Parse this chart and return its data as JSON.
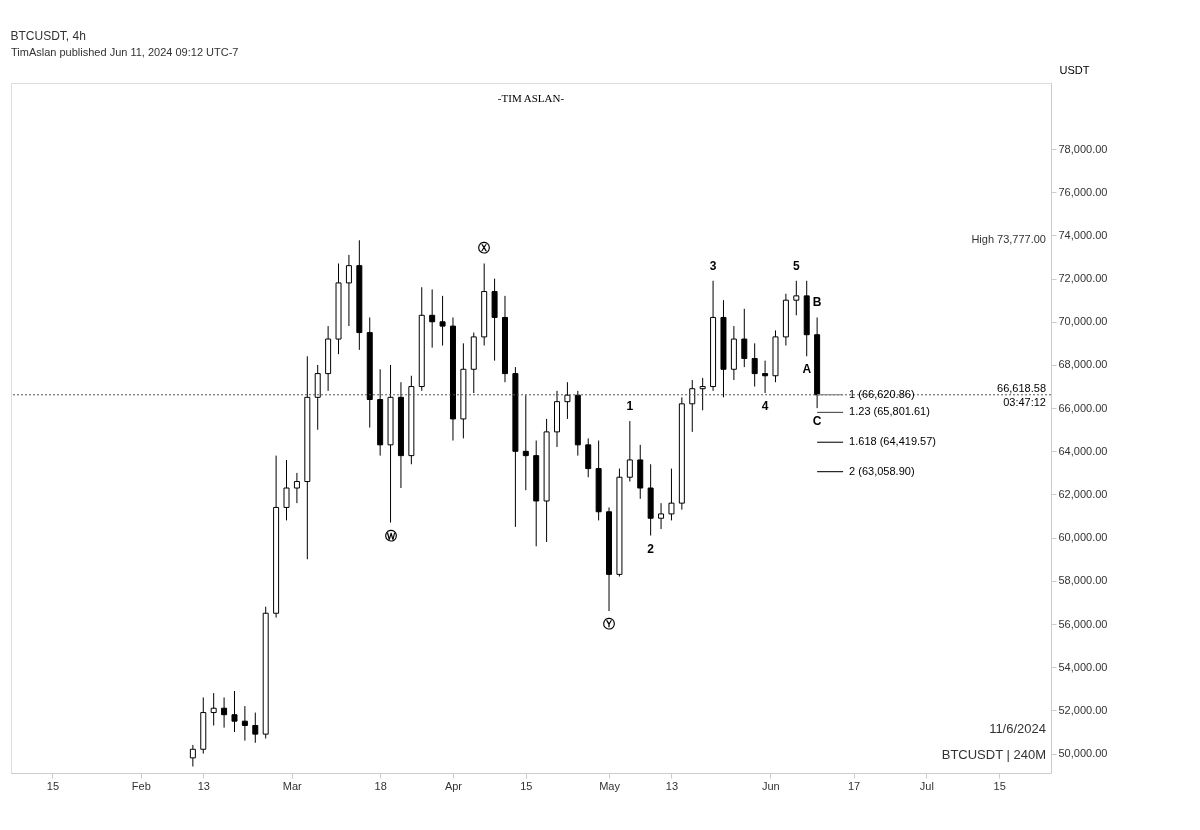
{
  "chart_data": {
    "type": "candlestick",
    "title": "BTCUSDT, 4h",
    "subtitle": "-TIM ASLAN-",
    "ylabel": "USDT",
    "color": "#000000",
    "x": [
      "2024-02-11",
      "2024-02-13",
      "2024-02-15",
      "2024-02-17",
      "2024-02-19",
      "2024-02-21",
      "2024-02-23",
      "2024-02-25",
      "2024-02-27",
      "2024-02-29",
      "2024-03-02",
      "2024-03-04",
      "2024-03-06",
      "2024-03-08",
      "2024-03-10",
      "2024-03-12",
      "2024-03-14",
      "2024-03-16",
      "2024-03-18",
      "2024-03-20",
      "2024-03-22",
      "2024-03-24",
      "2024-03-26",
      "2024-03-28",
      "2024-03-30",
      "2024-04-01",
      "2024-04-03",
      "2024-04-05",
      "2024-04-07",
      "2024-04-09",
      "2024-04-11",
      "2024-04-13",
      "2024-04-15",
      "2024-04-17",
      "2024-04-19",
      "2024-04-21",
      "2024-04-23",
      "2024-04-25",
      "2024-04-27",
      "2024-04-29",
      "2024-05-01",
      "2024-05-03",
      "2024-05-05",
      "2024-05-07",
      "2024-05-09",
      "2024-05-11",
      "2024-05-13",
      "2024-05-15",
      "2024-05-17",
      "2024-05-19",
      "2024-05-21",
      "2024-05-23",
      "2024-05-25",
      "2024-05-27",
      "2024-05-29",
      "2024-05-31",
      "2024-06-02",
      "2024-06-04",
      "2024-06-06",
      "2024-06-08",
      "2024-06-10"
    ],
    "ohlc": [
      [
        49800,
        50400,
        49400,
        50200
      ],
      [
        50200,
        52600,
        50000,
        51900
      ],
      [
        51900,
        52800,
        51300,
        52100
      ],
      [
        52100,
        52600,
        51200,
        51800
      ],
      [
        51800,
        52900,
        51000,
        51500
      ],
      [
        51500,
        52200,
        50600,
        51300
      ],
      [
        51300,
        51900,
        50500,
        50900
      ],
      [
        50900,
        56800,
        50700,
        56500
      ],
      [
        56500,
        63800,
        56300,
        61400
      ],
      [
        61400,
        63600,
        60800,
        62300
      ],
      [
        62300,
        63000,
        61600,
        62600
      ],
      [
        62600,
        68400,
        59000,
        66500
      ],
      [
        66500,
        68000,
        65000,
        67600
      ],
      [
        67600,
        69800,
        66800,
        69200
      ],
      [
        69200,
        72700,
        68500,
        71800
      ],
      [
        71800,
        73100,
        69800,
        72600
      ],
      [
        72600,
        73777,
        68700,
        69500
      ],
      [
        69500,
        70200,
        65100,
        66400
      ],
      [
        66400,
        67800,
        63800,
        64300
      ],
      [
        64300,
        68000,
        60700,
        66500
      ],
      [
        66500,
        67200,
        62300,
        63800
      ],
      [
        63800,
        67500,
        63400,
        67000
      ],
      [
        67000,
        71600,
        66800,
        70300
      ],
      [
        70300,
        71500,
        68800,
        70000
      ],
      [
        70000,
        71200,
        68900,
        69800
      ],
      [
        69800,
        70200,
        64500,
        65500
      ],
      [
        65500,
        69000,
        64600,
        67800
      ],
      [
        67800,
        69500,
        66700,
        69300
      ],
      [
        69300,
        72700,
        68900,
        71400
      ],
      [
        71400,
        72000,
        68200,
        70200
      ],
      [
        70200,
        71200,
        67200,
        67600
      ],
      [
        67600,
        67900,
        60500,
        64000
      ],
      [
        64000,
        66600,
        62200,
        63800
      ],
      [
        63800,
        64500,
        59600,
        61700
      ],
      [
        61700,
        65500,
        59800,
        64900
      ],
      [
        64900,
        66800,
        64200,
        66300
      ],
      [
        66300,
        67200,
        65500,
        66600
      ],
      [
        66600,
        66800,
        63800,
        64300
      ],
      [
        64300,
        64600,
        62800,
        63200
      ],
      [
        63200,
        64500,
        60800,
        61200
      ],
      [
        61200,
        61400,
        56600,
        58300
      ],
      [
        58300,
        63200,
        58200,
        62800
      ],
      [
        62800,
        65400,
        62600,
        63600
      ],
      [
        63600,
        64300,
        61800,
        62300
      ],
      [
        62300,
        63400,
        60100,
        60900
      ],
      [
        60900,
        61600,
        60400,
        61100
      ],
      [
        61100,
        63200,
        60800,
        61600
      ],
      [
        61600,
        66500,
        61300,
        66200
      ],
      [
        66200,
        67300,
        64900,
        66900
      ],
      [
        66900,
        67400,
        65900,
        67000
      ],
      [
        67000,
        71900,
        66800,
        70200
      ],
      [
        70200,
        71000,
        66500,
        67800
      ],
      [
        67800,
        69800,
        67300,
        69200
      ],
      [
        69200,
        70600,
        67900,
        68300
      ],
      [
        68300,
        69000,
        67000,
        67600
      ],
      [
        67600,
        68200,
        66700,
        67500
      ],
      [
        67500,
        69600,
        67200,
        69300
      ],
      [
        69300,
        71300,
        68900,
        71000
      ],
      [
        71000,
        71900,
        70300,
        71200
      ],
      [
        71200,
        71900,
        68400,
        69400
      ],
      [
        69400,
        70200,
        66000,
        66618.58
      ]
    ],
    "xlim": [
      "2024-01-08",
      "2024-07-24"
    ],
    "xticks": [
      {
        "value": "2024-01-15",
        "label": "15"
      },
      {
        "value": "2024-02-01",
        "label": "Feb"
      },
      {
        "value": "2024-02-13",
        "label": "13"
      },
      {
        "value": "2024-03-01",
        "label": "Mar"
      },
      {
        "value": "2024-03-18",
        "label": "18"
      },
      {
        "value": "2024-04-01",
        "label": "Apr"
      },
      {
        "value": "2024-04-15",
        "label": "15"
      },
      {
        "value": "2024-05-01",
        "label": "May"
      },
      {
        "value": "2024-05-13",
        "label": "13"
      },
      {
        "value": "2024-06-01",
        "label": "Jun"
      },
      {
        "value": "2024-06-17",
        "label": "17"
      },
      {
        "value": "2024-07-01",
        "label": "Jul"
      },
      {
        "value": "2024-07-15",
        "label": "15"
      }
    ],
    "ylim": [
      49100,
      81060
    ],
    "yticks": [
      {
        "value": 50000,
        "label": "50,000.00"
      },
      {
        "value": 52000,
        "label": "52,000.00"
      },
      {
        "value": 54000,
        "label": "54,000.00"
      },
      {
        "value": 56000,
        "label": "56,000.00"
      },
      {
        "value": 58000,
        "label": "58,000.00"
      },
      {
        "value": 60000,
        "label": "60,000.00"
      },
      {
        "value": 62000,
        "label": "62,000.00"
      },
      {
        "value": 64000,
        "label": "64,000.00"
      },
      {
        "value": 66000,
        "label": "66,000.00"
      },
      {
        "value": 68000,
        "label": "68,000.00"
      },
      {
        "value": 70000,
        "label": "70,000.00"
      },
      {
        "value": 72000,
        "label": "72,000.00"
      },
      {
        "value": 74000,
        "label": "74,000.00"
      },
      {
        "value": 76000,
        "label": "76,000.00"
      },
      {
        "value": 78000,
        "label": "78,000.00"
      }
    ],
    "ref_lines": [
      {
        "axis": "y",
        "value": 66618.58,
        "label": "66,618.58",
        "line_style": "dotted",
        "color": "#555555"
      },
      {
        "axis": "y",
        "value": 66620.86,
        "label": "1 (66,620.86)",
        "line_style": "solid",
        "color": "#888888"
      },
      {
        "axis": "y",
        "value": 65801.61,
        "label": "1.23 (65,801.61)",
        "line_style": "solid",
        "color": "#555555"
      },
      {
        "axis": "y",
        "value": 64419.57,
        "label": "1.618 (64,419.57)",
        "line_style": "solid",
        "color": "#222222"
      },
      {
        "axis": "y",
        "value": 63058.9,
        "label": "2 (63,058.90)",
        "line_style": "solid",
        "color": "#222222"
      }
    ],
    "annotations": [
      "TimAslan published Jun 11, 2024 09:12 UTC-7",
      "11/6/2024",
      "BTCUSDT | 240M",
      "High 73,777.00",
      {
        "text": "03:47:12",
        "y": 66618.58
      },
      {
        "text": "Ⓦ",
        "x": "2024-03-20",
        "y": 60700
      },
      {
        "text": "Ⓧ",
        "x": "2024-04-07",
        "y": 72700
      },
      {
        "text": "Ⓨ",
        "x": "2024-05-01",
        "y": 56600
      },
      {
        "text": "1",
        "x": "2024-05-05",
        "y": 65400
      },
      {
        "text": "2",
        "x": "2024-05-09",
        "y": 60100
      },
      {
        "text": "3",
        "x": "2024-05-21",
        "y": 71900
      },
      {
        "text": "4",
        "x": "2024-05-31",
        "y": 66700
      },
      {
        "text": "5",
        "x": "2024-06-06",
        "y": 71900
      },
      {
        "text": "A",
        "x": "2024-06-08",
        "y": 68400
      },
      {
        "text": "B",
        "x": "2024-06-10",
        "y": 70200
      },
      {
        "text": "C",
        "x": "2024-06-10",
        "y": 66000
      }
    ]
  }
}
